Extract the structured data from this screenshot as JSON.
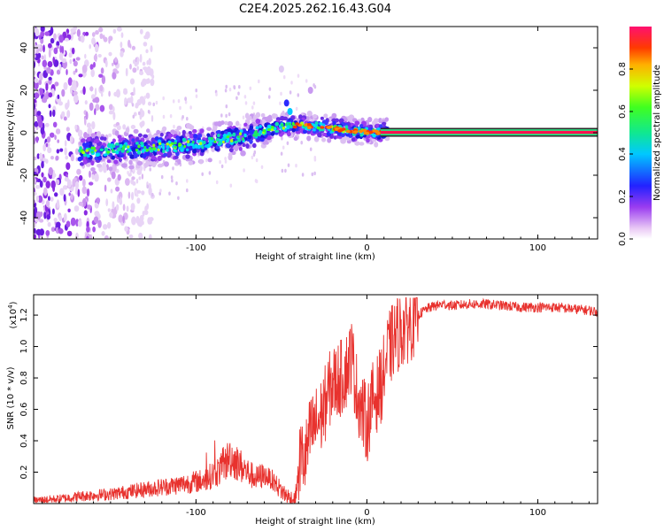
{
  "title": "C2E4.2025.262.16.43.G04",
  "chart_data": [
    {
      "type": "heatmap",
      "name": "spectrogram",
      "xlabel": "Height of straight line (km)",
      "ylabel": "Frequency (Hz)",
      "xlim": [
        -195,
        135
      ],
      "ylim": [
        -50,
        50
      ],
      "x_ticks": [
        -100,
        0,
        100
      ],
      "y_ticks": [
        -40,
        -20,
        0,
        20,
        40
      ],
      "ridge": {
        "x": [
          -168,
          -150,
          -130,
          -110,
          -90,
          -75,
          -60,
          -50,
          -40,
          -30,
          -20,
          -10,
          0,
          10,
          135
        ],
        "y": [
          -9,
          -8,
          -7,
          -6,
          -4,
          -2,
          1,
          3,
          3.5,
          3,
          2,
          1,
          0.5,
          0.2,
          0.2
        ]
      },
      "colorbar": {
        "label": "Normalized spectral amplitude",
        "range": [
          0,
          1
        ],
        "ticks": [
          "0.0",
          "0.2",
          "0.4",
          "0.6",
          "0.8"
        ],
        "tick_values": [
          0,
          0.2,
          0.4,
          0.6,
          0.8
        ]
      }
    },
    {
      "type": "line",
      "name": "snr",
      "xlabel": "Height of straight line (km)",
      "ylabel": "SNR (10 * v/v)",
      "y_multiplier": "(x10",
      "y_multiplier_exp": "4",
      "y_multiplier_close": ")",
      "xlim": [
        -195,
        135
      ],
      "ylim": [
        0,
        1.33
      ],
      "x_ticks": [
        -100,
        0,
        100
      ],
      "y_ticks": [
        "0.2",
        "0.4",
        "0.6",
        "0.8",
        "1.0",
        "1.2"
      ],
      "y_tick_values": [
        0.2,
        0.4,
        0.6,
        0.8,
        1.0,
        1.2
      ],
      "color": "#e8322e",
      "series": {
        "x": [
          -195,
          -180,
          -165,
          -150,
          -130,
          -110,
          -95,
          -85,
          -80,
          -75,
          -70,
          -65,
          -60,
          -55,
          -50,
          -45,
          -42,
          -39,
          -36,
          -33,
          -30,
          -27,
          -24,
          -21,
          -18,
          -15,
          -12,
          -9,
          -6,
          -3,
          0,
          3,
          6,
          9,
          12,
          15,
          18,
          22,
          26,
          30,
          35,
          40,
          45,
          50,
          60,
          70,
          80,
          90,
          100,
          110,
          120,
          130,
          135
        ],
        "y": [
          0.02,
          0.03,
          0.05,
          0.06,
          0.09,
          0.12,
          0.15,
          0.22,
          0.3,
          0.25,
          0.2,
          0.16,
          0.18,
          0.15,
          0.08,
          0.03,
          0.02,
          0.3,
          0.28,
          0.45,
          0.5,
          0.55,
          0.65,
          0.75,
          0.78,
          0.8,
          0.85,
          0.95,
          0.72,
          0.6,
          0.5,
          0.65,
          0.7,
          0.78,
          0.95,
          1.03,
          1.08,
          1.12,
          1.16,
          1.2,
          1.24,
          1.26,
          1.27,
          1.26,
          1.27,
          1.27,
          1.26,
          1.25,
          1.25,
          1.25,
          1.24,
          1.23,
          1.22
        ]
      }
    }
  ]
}
